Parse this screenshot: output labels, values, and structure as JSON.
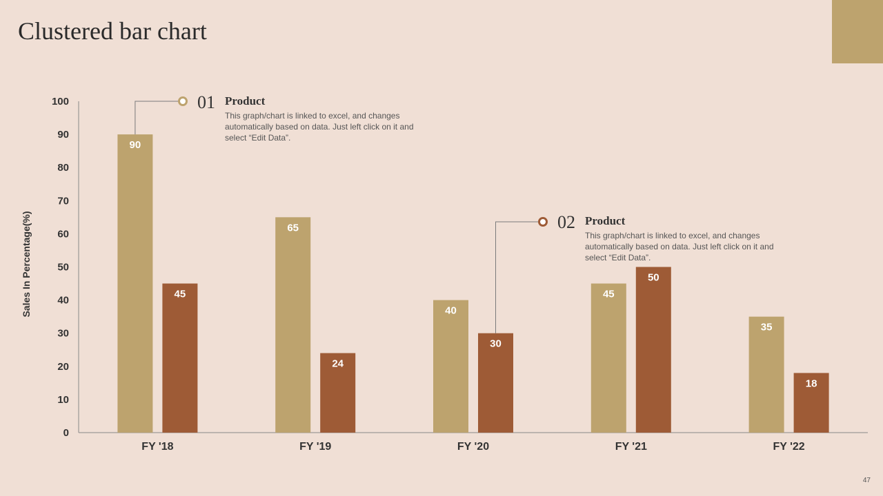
{
  "title": "Clustered bar chart",
  "page_number": "47",
  "colors": {
    "series1": "#BDA36E",
    "series2": "#9E5B36",
    "background": "#F0DFD5",
    "axis": "#888888",
    "text": "#333333"
  },
  "callouts": [
    {
      "number": "01",
      "heading": "Product",
      "body": "This graph/chart is linked to excel, and changes automatically based on data. Just left click on it and select “Edit Data”."
    },
    {
      "number": "02",
      "heading": "Product",
      "body": "This graph/chart is linked to excel, and changes automatically based on data. Just left click on it and select “Edit Data”."
    }
  ],
  "chart_data": {
    "type": "bar",
    "title": "",
    "xlabel": "",
    "ylabel": "Sales In Percentage(%)",
    "categories": [
      "FY '18",
      "FY '19",
      "FY '20",
      "FY '21",
      "FY '22"
    ],
    "series": [
      {
        "values": [
          90,
          65,
          40,
          45,
          35
        ]
      },
      {
        "values": [
          45,
          24,
          30,
          50,
          18
        ]
      }
    ],
    "ylim": [
      0,
      100
    ],
    "yticks": [
      0,
      10,
      20,
      30,
      40,
      50,
      60,
      70,
      80,
      90,
      100
    ],
    "grid": false,
    "legend": "none",
    "data_labels": true
  }
}
